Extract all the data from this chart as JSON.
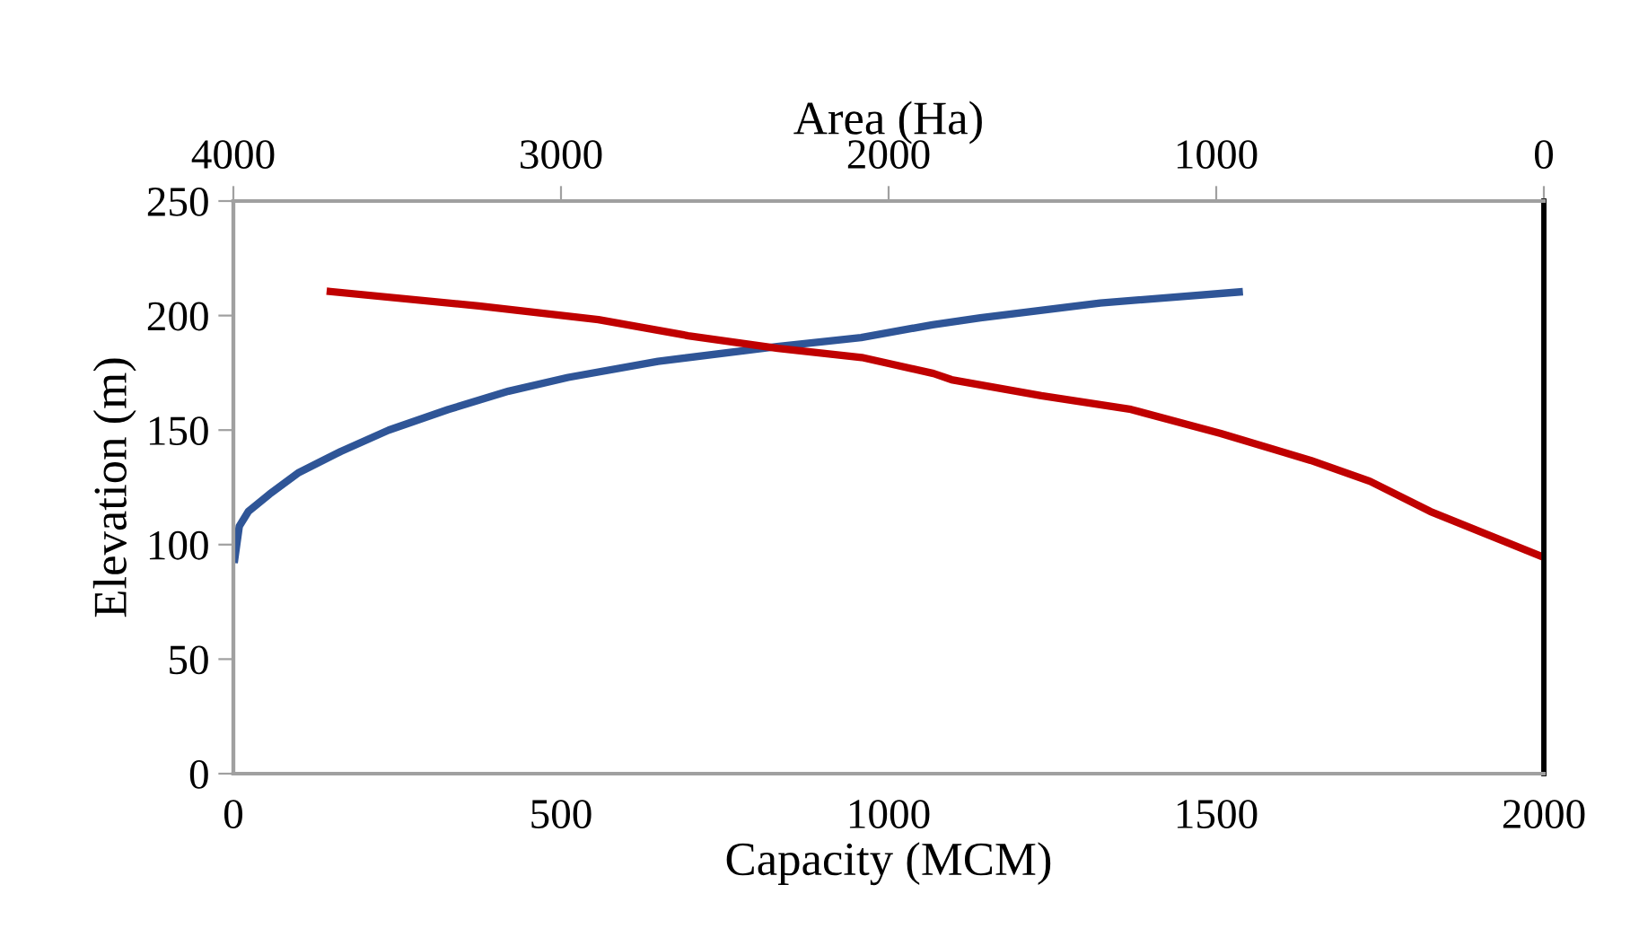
{
  "chart_data": {
    "type": "line",
    "xlabel": "Capacity (MCM)",
    "x2label": "Area (Ha)",
    "ylabel": "Elevation (m)",
    "xlim": [
      0,
      2000
    ],
    "xticks": [
      0,
      500,
      1000,
      1500,
      2000
    ],
    "x2lim": [
      4000,
      0
    ],
    "x2ticks": [
      4000,
      3000,
      2000,
      1000,
      0
    ],
    "ylim": [
      0,
      250
    ],
    "yticks": [
      0,
      50,
      100,
      150,
      200,
      250
    ],
    "grid": false,
    "legend": false,
    "marker": "none",
    "line_style": "solid",
    "series": [
      {
        "color": "#2f5597",
        "x": [
          2,
          9,
          23,
          55,
          100,
          164,
          237,
          328,
          420,
          511,
          648,
          830,
          958,
          1067,
          1140,
          1323,
          1535
        ],
        "values": [
          93.6,
          108,
          114.5,
          122,
          131.5,
          140.7,
          150,
          159,
          167,
          173,
          180,
          186.5,
          190.4,
          196,
          199,
          205.5,
          210.3
        ]
      },
      {
        "color": "#c00000",
        "axis": "x2",
        "x": [
          3704,
          3251,
          2886,
          2612,
          2338,
          2082,
          1863,
          1808,
          1534,
          1260,
          986,
          712,
          530,
          347,
          0
        ],
        "values": [
          210.5,
          204.2,
          198.2,
          191.2,
          185.7,
          181.7,
          174.7,
          172,
          165,
          159,
          148.5,
          136.8,
          127.6,
          114.5,
          94.4
        ]
      }
    ]
  }
}
